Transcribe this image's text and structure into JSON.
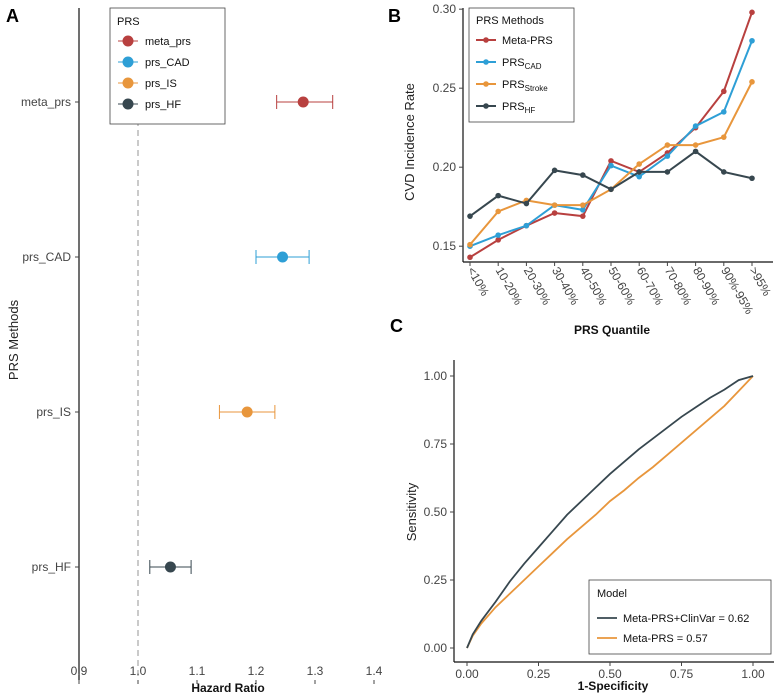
{
  "panels": {
    "a": "A",
    "b": "B",
    "c": "C"
  },
  "colors": {
    "meta": "#b8403f",
    "cad": "#2e9fd6",
    "is": "#e8963c",
    "hf": "#37474f",
    "grid": "#bdbdbd",
    "ref": "#bdbdbd"
  },
  "chart_data": [
    {
      "id": "A",
      "type": "scatter",
      "subtype": "forest",
      "xlabel": "Hazard Ratio",
      "ylabel": "PRS Methods",
      "xlim": [
        0.9,
        1.4
      ],
      "x_ticks": [
        "0.9",
        "1.0",
        "1.1",
        "1.2",
        "1.3",
        "1.4"
      ],
      "x_tick_values": [
        0.9,
        1.0,
        1.1,
        1.2,
        1.3,
        1.4
      ],
      "reference_line": 1.0,
      "legend_title": "PRS",
      "legend_position": "top-left",
      "rows": [
        {
          "name": "meta_prs",
          "hr": 1.28,
          "lo": 1.235,
          "hi": 1.33,
          "color": "#b8403f"
        },
        {
          "name": "prs_CAD",
          "hr": 1.245,
          "lo": 1.2,
          "hi": 1.29,
          "color": "#2e9fd6"
        },
        {
          "name": "prs_IS",
          "hr": 1.185,
          "lo": 1.138,
          "hi": 1.232,
          "color": "#e8963c"
        },
        {
          "name": "prs_HF",
          "hr": 1.055,
          "lo": 1.02,
          "hi": 1.09,
          "color": "#37474f"
        }
      ]
    },
    {
      "id": "B",
      "type": "line",
      "xlabel": "PRS Quantile",
      "ylabel": "CVD Incidence Rate",
      "ylim": [
        0.14,
        0.3
      ],
      "y_ticks": [
        "0.15",
        "0.20",
        "0.25",
        "0.30"
      ],
      "y_tick_values": [
        0.15,
        0.2,
        0.25,
        0.3
      ],
      "legend_title": "PRS Methods",
      "legend_position": "top-left",
      "categories": [
        "<10%",
        "10-20%",
        "20-30%",
        "30-40%",
        "40-50%",
        "50-60%",
        "60-70%",
        "70-80%",
        "80-90%",
        "90%-95%",
        ">95%"
      ],
      "series": [
        {
          "name": "Meta-PRS",
          "base": "Meta-PRS",
          "sub": "",
          "color": "#b8403f",
          "values": [
            0.143,
            0.154,
            0.163,
            0.171,
            0.169,
            0.204,
            0.197,
            0.209,
            0.225,
            0.248,
            0.298
          ]
        },
        {
          "name": "PRS_CAD",
          "base": "PRS",
          "sub": "CAD",
          "color": "#2e9fd6",
          "values": [
            0.15,
            0.157,
            0.163,
            0.176,
            0.173,
            0.201,
            0.194,
            0.207,
            0.226,
            0.235,
            0.28
          ]
        },
        {
          "name": "PRS_Stroke",
          "base": "PRS",
          "sub": "Stroke",
          "color": "#e8963c",
          "values": [
            0.151,
            0.172,
            0.179,
            0.176,
            0.176,
            0.186,
            0.202,
            0.214,
            0.214,
            0.219,
            0.254
          ]
        },
        {
          "name": "PRS_HF",
          "base": "PRS",
          "sub": "HF",
          "color": "#37474f",
          "values": [
            0.169,
            0.182,
            0.177,
            0.198,
            0.195,
            0.186,
            0.197,
            0.197,
            0.21,
            0.197,
            0.193
          ]
        }
      ]
    },
    {
      "id": "C",
      "type": "line",
      "subtype": "roc",
      "xlabel": "1-Specificity",
      "ylabel": "Sensitivity",
      "xlim": [
        0,
        1
      ],
      "ylim": [
        0,
        1
      ],
      "x_ticks": [
        "0.00",
        "0.25",
        "0.50",
        "0.75",
        "1.00"
      ],
      "y_ticks": [
        "0.00",
        "0.25",
        "0.50",
        "0.75",
        "1.00"
      ],
      "tick_values": [
        0,
        0.25,
        0.5,
        0.75,
        1
      ],
      "legend_title": "Model",
      "legend_position": "bottom-right",
      "series": [
        {
          "name": "Meta-PRS+ClinVar = 0.62",
          "color": "#37474f",
          "x": [
            0,
            0.02,
            0.05,
            0.1,
            0.15,
            0.2,
            0.25,
            0.3,
            0.35,
            0.4,
            0.45,
            0.5,
            0.55,
            0.6,
            0.65,
            0.7,
            0.75,
            0.8,
            0.85,
            0.9,
            0.95,
            1.0
          ],
          "y": [
            0,
            0.05,
            0.1,
            0.17,
            0.245,
            0.31,
            0.37,
            0.43,
            0.49,
            0.54,
            0.59,
            0.64,
            0.685,
            0.73,
            0.77,
            0.81,
            0.85,
            0.885,
            0.92,
            0.95,
            0.985,
            1.0
          ]
        },
        {
          "name": "Meta-PRS = 0.57",
          "color": "#e8963c",
          "x": [
            0,
            0.02,
            0.05,
            0.1,
            0.15,
            0.2,
            0.25,
            0.3,
            0.35,
            0.4,
            0.45,
            0.5,
            0.55,
            0.6,
            0.65,
            0.7,
            0.75,
            0.8,
            0.85,
            0.9,
            0.95,
            1.0
          ],
          "y": [
            0,
            0.045,
            0.09,
            0.15,
            0.2,
            0.25,
            0.3,
            0.35,
            0.4,
            0.445,
            0.49,
            0.54,
            0.58,
            0.625,
            0.665,
            0.71,
            0.755,
            0.8,
            0.845,
            0.89,
            0.945,
            1.0
          ]
        }
      ]
    }
  ]
}
